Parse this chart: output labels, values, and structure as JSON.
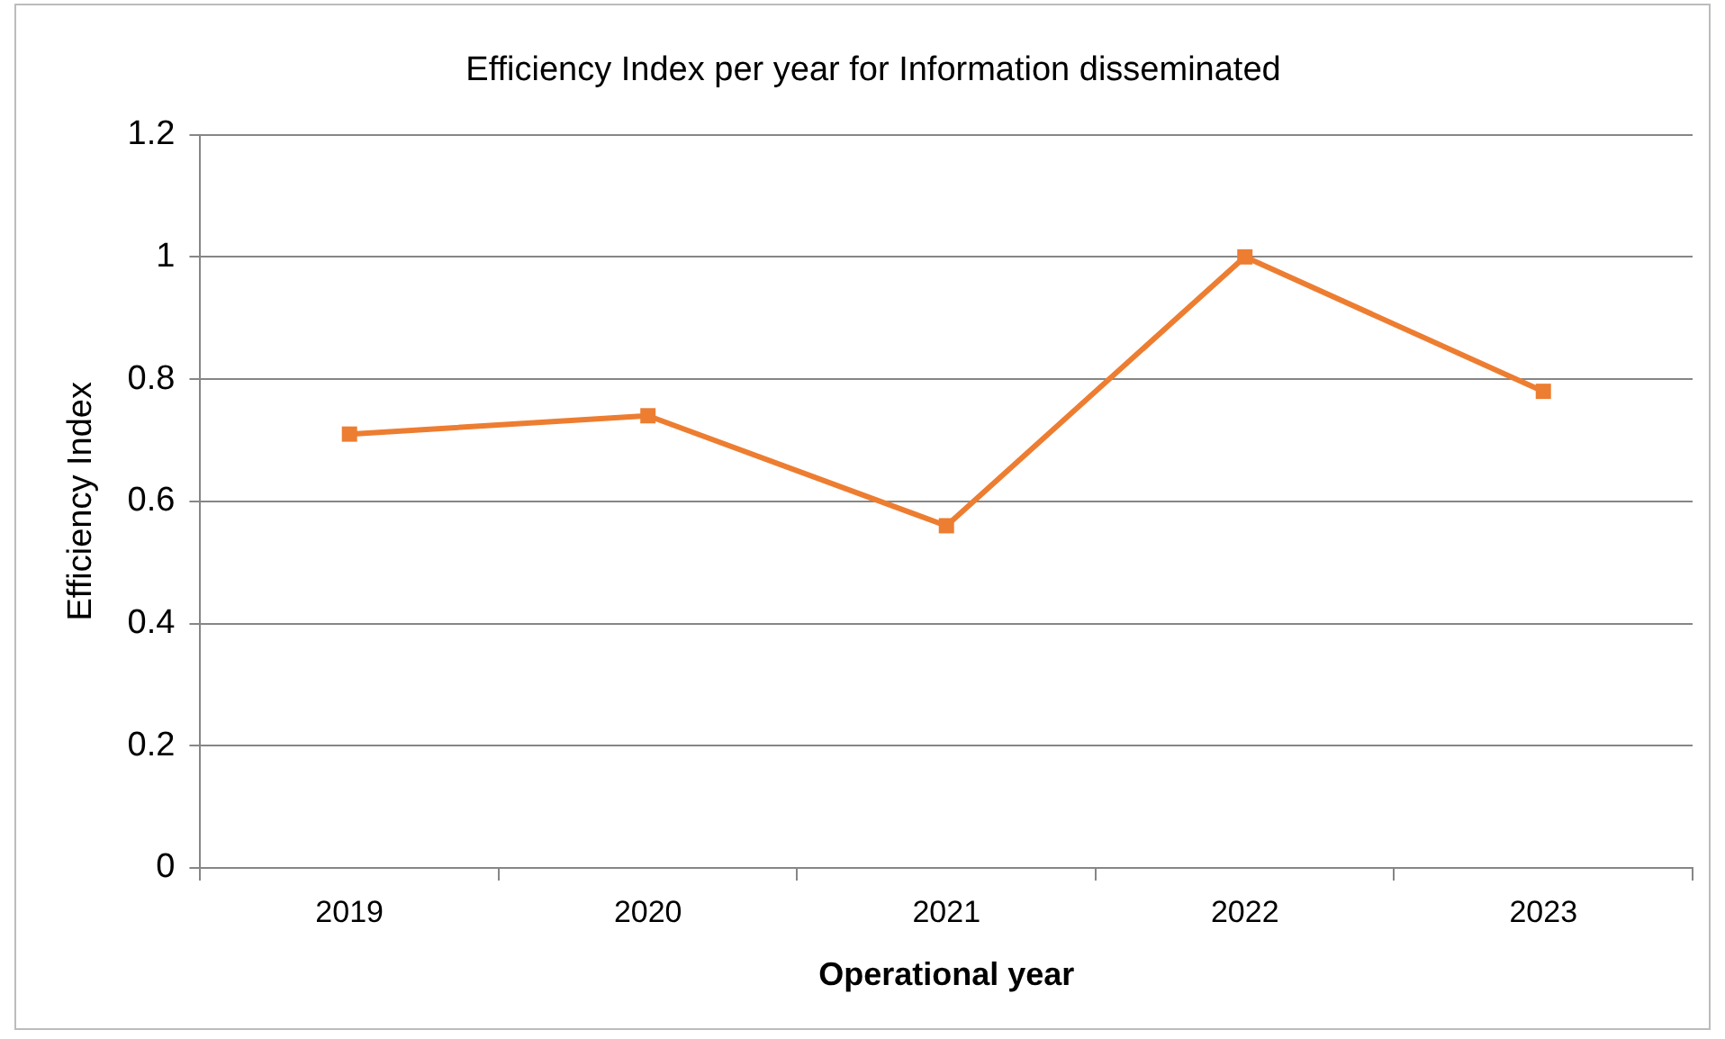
{
  "chart_data": {
    "type": "line",
    "title": "Efficiency Index per year for Information disseminated",
    "xlabel": "Operational year",
    "ylabel": "Efficiency Index",
    "categories": [
      "2019",
      "2020",
      "2021",
      "2022",
      "2023"
    ],
    "series": [
      {
        "color": "#ed7d31",
        "values": [
          0.71,
          0.74,
          0.56,
          1.0,
          0.78
        ]
      }
    ],
    "ylim": [
      0,
      1.2
    ],
    "yticks": [
      0,
      0.2,
      0.4,
      0.6,
      0.8,
      1,
      1.2
    ],
    "grid": "y",
    "legend": false,
    "marker": "square",
    "line_style": "solid"
  }
}
